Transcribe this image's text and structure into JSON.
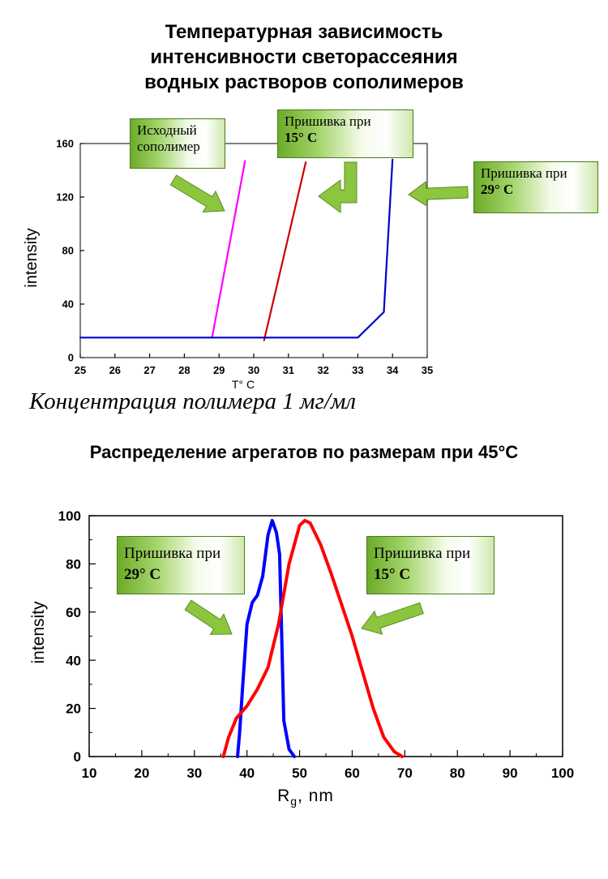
{
  "titles": {
    "top_line1": "Температурная зависимость",
    "top_line2": "интенсивности светорассеяния",
    "top_line3": "водных растворов сополимеров",
    "bottom": "Распределение агрегатов по размерам при 45°C",
    "concentration": "Концентрация полимера 1 мг/мл"
  },
  "callouts": {
    "top_initial": {
      "line1": "Исходный",
      "line2": "сополимер"
    },
    "top_15": {
      "line1": "Пришивка при",
      "line2": "15° C"
    },
    "top_29": {
      "line1": "Пришивка при",
      "line2": "29° C"
    },
    "bottom_29": {
      "line1": "Пришивка при",
      "line2": "29° C"
    },
    "bottom_15": {
      "line1": "Пришивка при",
      "line2": "15° C"
    }
  },
  "colors": {
    "magenta": "#ff00ff",
    "red": "#cc0000",
    "blue": "#0000cc",
    "red_bright": "#ff0000",
    "blue_bright": "#0000ff",
    "arrow_green": "#8cc63f"
  },
  "chart_data": [
    {
      "type": "line",
      "xlabel": "T° C",
      "ylabel": "intensity",
      "xlim": [
        25,
        35
      ],
      "ylim": [
        0,
        160
      ],
      "x_ticks": [
        "25",
        "26",
        "27",
        "28",
        "29",
        "30",
        "31",
        "32",
        "33",
        "34",
        "35"
      ],
      "y_ticks": [
        "0",
        "40",
        "80",
        "120",
        "160"
      ],
      "series": [
        {
          "color": "#ff00ff",
          "points": [
            [
              28.8,
              15
            ],
            [
              29.75,
              147
            ]
          ]
        },
        {
          "color": "#cc0000",
          "points": [
            [
              30.3,
              13
            ],
            [
              31.5,
              146
            ]
          ]
        },
        {
          "color": "#0000cc",
          "points": [
            [
              25,
              15
            ],
            [
              33,
              15
            ],
            [
              33.75,
              34
            ],
            [
              34.0,
              148
            ]
          ]
        }
      ]
    },
    {
      "type": "line",
      "xlabel": "Rg, nm",
      "ylabel": "intensity",
      "xlim": [
        10,
        100
      ],
      "ylim": [
        0,
        100
      ],
      "x_ticks": [
        "10",
        "20",
        "30",
        "40",
        "50",
        "60",
        "70",
        "80",
        "90",
        "100"
      ],
      "y_ticks": [
        "0",
        "20",
        "40",
        "60",
        "80",
        "100"
      ],
      "series": [
        {
          "color": "#0000ff",
          "points": [
            [
              38.2,
              0
            ],
            [
              38.6,
              10
            ],
            [
              39.2,
              30
            ],
            [
              40,
              55
            ],
            [
              41,
              64
            ],
            [
              42,
              67
            ],
            [
              43,
              75
            ],
            [
              44,
              92
            ],
            [
              44.8,
              98
            ],
            [
              45.6,
              93
            ],
            [
              46.2,
              84
            ],
            [
              46.6,
              50
            ],
            [
              47,
              15
            ],
            [
              48,
              3
            ],
            [
              49,
              0
            ]
          ]
        },
        {
          "color": "#ff0000",
          "points": [
            [
              35.5,
              0
            ],
            [
              36.5,
              8
            ],
            [
              38,
              16
            ],
            [
              40,
              21
            ],
            [
              42,
              28
            ],
            [
              44,
              37
            ],
            [
              46,
              55
            ],
            [
              48,
              80
            ],
            [
              50,
              96
            ],
            [
              51,
              98
            ],
            [
              52,
              97
            ],
            [
              54,
              88
            ],
            [
              56,
              76
            ],
            [
              58,
              63
            ],
            [
              60,
              50
            ],
            [
              62,
              35
            ],
            [
              64,
              20
            ],
            [
              66,
              8
            ],
            [
              68,
              2
            ],
            [
              69.5,
              0
            ]
          ]
        }
      ]
    }
  ]
}
